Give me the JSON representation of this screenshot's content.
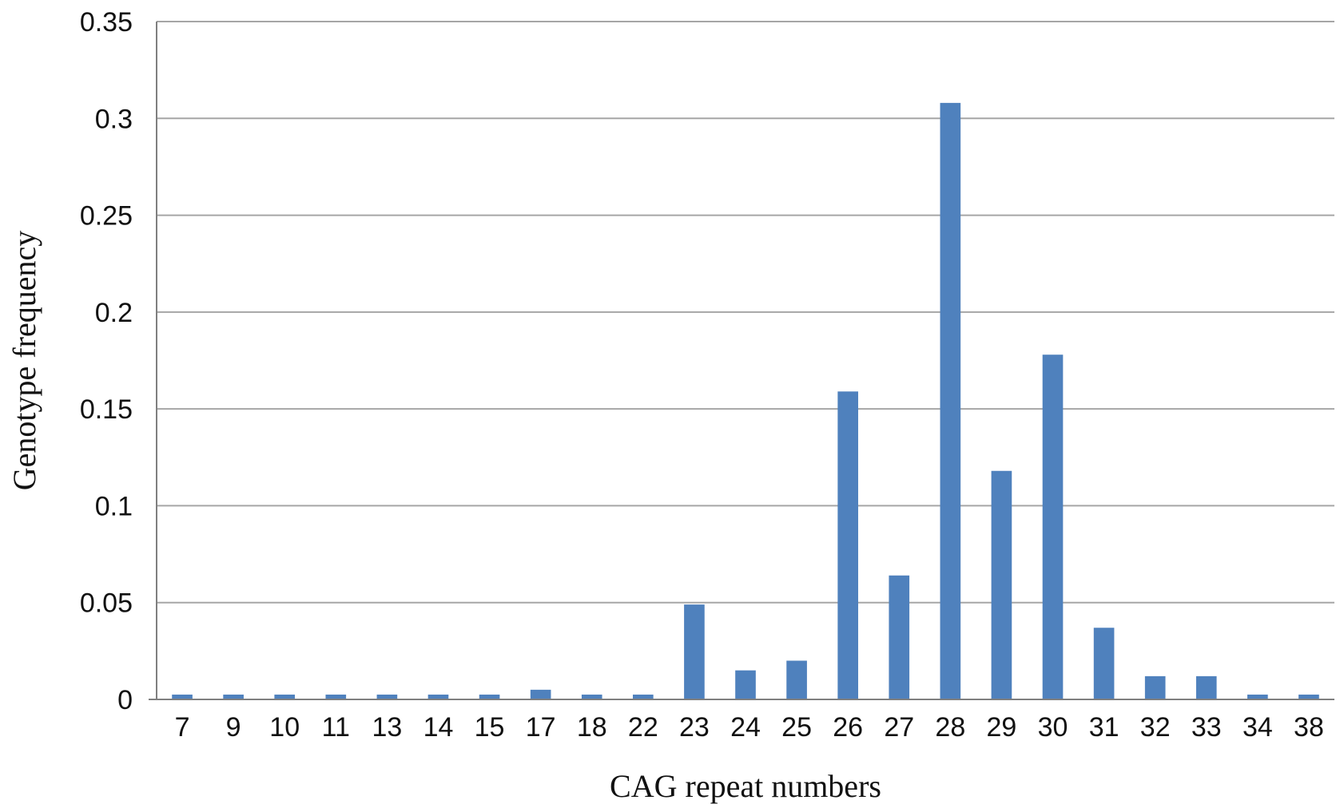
{
  "chart_data": {
    "type": "bar",
    "title": "",
    "xlabel": "CAG repeat numbers",
    "ylabel": "Genotype frequency",
    "categories": [
      "7",
      "9",
      "10",
      "11",
      "13",
      "14",
      "15",
      "17",
      "18",
      "22",
      "23",
      "24",
      "25",
      "26",
      "27",
      "28",
      "29",
      "30",
      "31",
      "32",
      "33",
      "34",
      "38"
    ],
    "values": [
      0.0025,
      0.0025,
      0.0025,
      0.0025,
      0.0025,
      0.0025,
      0.0025,
      0.005,
      0.0025,
      0.0025,
      0.049,
      0.015,
      0.02,
      0.159,
      0.064,
      0.308,
      0.118,
      0.178,
      0.037,
      0.012,
      0.012,
      0.0025,
      0.0025
    ],
    "ylim": [
      0,
      0.35
    ],
    "yticks": [
      0,
      0.05,
      0.1,
      0.15,
      0.2,
      0.25,
      0.3,
      0.35
    ],
    "ytick_labels": [
      "0",
      "0.05",
      "0.1",
      "0.15",
      "0.2",
      "0.25",
      "0.3",
      "0.35"
    ],
    "grid": true,
    "legend": "none",
    "colors": {
      "bar": "#4f81bd"
    }
  }
}
